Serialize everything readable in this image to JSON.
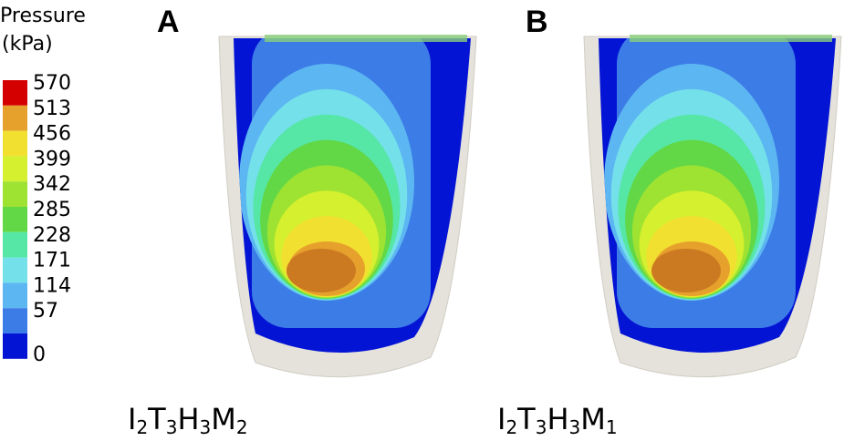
{
  "legend": {
    "title_line1": "Pressure",
    "title_line2": "(kPa)",
    "levels": [
      {
        "value": 570,
        "color": "#d40000"
      },
      {
        "value": 513,
        "color": "#e6a02c"
      },
      {
        "value": 456,
        "color": "#f2e030"
      },
      {
        "value": 399,
        "color": "#d4f02e"
      },
      {
        "value": 342,
        "color": "#9ee232"
      },
      {
        "value": 285,
        "color": "#62d846"
      },
      {
        "value": 228,
        "color": "#56e6a6"
      },
      {
        "value": 171,
        "color": "#74e0ea"
      },
      {
        "value": 114,
        "color": "#5cb6f2"
      },
      {
        "value": 57,
        "color": "#3c7ce6"
      },
      {
        "value": 0,
        "color": "#0414d4"
      }
    ]
  },
  "panels": [
    {
      "label": "A",
      "caption": [
        {
          "text": "I",
          "sub": "2"
        },
        {
          "text": "T",
          "sub": "3"
        },
        {
          "text": "H",
          "sub": "3"
        },
        {
          "text": "M",
          "sub": "2"
        }
      ]
    },
    {
      "label": "B",
      "caption": [
        {
          "text": "I",
          "sub": "2"
        },
        {
          "text": "T",
          "sub": "3"
        },
        {
          "text": "H",
          "sub": "3"
        },
        {
          "text": "M",
          "sub": "1"
        }
      ]
    }
  ]
}
